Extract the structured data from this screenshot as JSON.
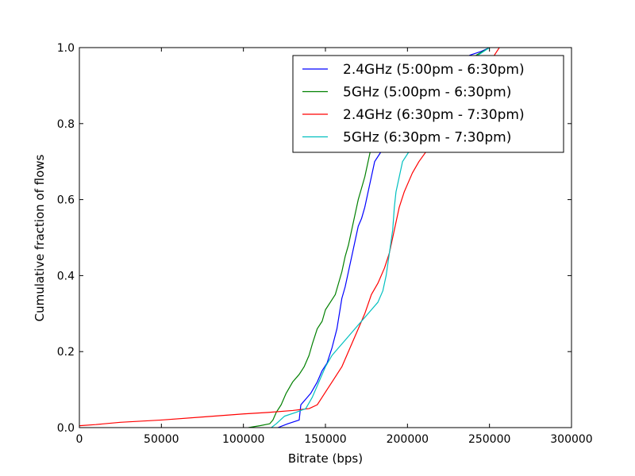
{
  "chart_data": {
    "type": "line",
    "title": "",
    "xlabel": "Bitrate (bps)",
    "ylabel": "Cumulative fraction of flows",
    "xlim": [
      0,
      300000
    ],
    "ylim": [
      0,
      1.0
    ],
    "xticks": [
      0,
      50000,
      100000,
      150000,
      200000,
      250000,
      300000
    ],
    "xtick_labels": [
      "0",
      "50000",
      "100000",
      "150000",
      "200000",
      "250000",
      "300000"
    ],
    "yticks": [
      0,
      0.2,
      0.4,
      0.6,
      0.8,
      1.0
    ],
    "ytick_labels": [
      "0.0",
      "0.2",
      "0.4",
      "0.6",
      "0.8",
      "1.0"
    ],
    "grid": false,
    "legend_position": "top-right",
    "series": [
      {
        "name": "2.4GHz (5:00pm - 6:30pm)",
        "color": "#0000ff",
        "x": [
          121000,
          127000,
          134000,
          135000,
          137000,
          141000,
          145000,
          148000,
          151000,
          154000,
          157000,
          160000,
          162000,
          164000,
          166000,
          168000,
          170000,
          172000,
          174000,
          176000,
          178000,
          180000,
          183000,
          186000,
          190000,
          195000,
          200000,
          210000,
          220000,
          230000,
          238000,
          245000,
          250000
        ],
        "y": [
          0.0,
          0.01,
          0.02,
          0.06,
          0.07,
          0.09,
          0.12,
          0.15,
          0.17,
          0.21,
          0.26,
          0.34,
          0.37,
          0.41,
          0.45,
          0.49,
          0.53,
          0.55,
          0.58,
          0.62,
          0.66,
          0.7,
          0.72,
          0.74,
          0.76,
          0.8,
          0.84,
          0.88,
          0.92,
          0.95,
          0.98,
          0.99,
          1.0
        ]
      },
      {
        "name": "5GHz (5:00pm - 6:30pm)",
        "color": "#008000",
        "x": [
          103000,
          110000,
          116000,
          118000,
          120000,
          123000,
          126000,
          130000,
          134000,
          137000,
          140000,
          142000,
          145000,
          148000,
          150000,
          153000,
          156000,
          158000,
          160000,
          162000,
          164000,
          166000,
          168000,
          170000,
          172000,
          174000,
          176000,
          178000,
          182000,
          188000,
          200000,
          215000,
          230000,
          242000,
          250000
        ],
        "y": [
          0.0,
          0.005,
          0.01,
          0.02,
          0.04,
          0.06,
          0.09,
          0.12,
          0.14,
          0.16,
          0.19,
          0.22,
          0.26,
          0.28,
          0.31,
          0.33,
          0.35,
          0.38,
          0.41,
          0.45,
          0.48,
          0.52,
          0.56,
          0.6,
          0.63,
          0.66,
          0.7,
          0.74,
          0.78,
          0.82,
          0.86,
          0.9,
          0.94,
          0.98,
          1.0
        ]
      },
      {
        "name": "2.4GHz (6:30pm - 7:30pm)",
        "color": "#ff0000",
        "x": [
          0,
          10000,
          25000,
          50000,
          75000,
          100000,
          115000,
          130000,
          140000,
          145000,
          148000,
          151000,
          154000,
          157000,
          160000,
          163000,
          166000,
          170000,
          174000,
          178000,
          182000,
          186000,
          189000,
          192000,
          195000,
          198000,
          200000,
          203000,
          207000,
          212000,
          220000,
          230000,
          240000,
          248000,
          253000,
          256000
        ],
        "y": [
          0.005,
          0.008,
          0.014,
          0.02,
          0.028,
          0.036,
          0.04,
          0.045,
          0.05,
          0.06,
          0.08,
          0.1,
          0.12,
          0.14,
          0.16,
          0.19,
          0.22,
          0.26,
          0.3,
          0.35,
          0.38,
          0.42,
          0.46,
          0.52,
          0.58,
          0.62,
          0.64,
          0.67,
          0.7,
          0.73,
          0.78,
          0.84,
          0.9,
          0.95,
          0.98,
          1.0
        ]
      },
      {
        "name": "5GHz (6:30pm - 7:30pm)",
        "color": "#00bfbf",
        "x": [
          117000,
          120000,
          125000,
          132000,
          138000,
          142000,
          146000,
          150000,
          154000,
          158000,
          162000,
          166000,
          170000,
          174000,
          178000,
          182000,
          185000,
          187000,
          189000,
          191000,
          192000,
          193000,
          195000,
          197000,
          200000,
          206000,
          215000,
          225000,
          235000,
          243000,
          250000
        ],
        "y": [
          0.0,
          0.01,
          0.03,
          0.04,
          0.05,
          0.08,
          0.12,
          0.16,
          0.19,
          0.21,
          0.23,
          0.25,
          0.27,
          0.29,
          0.31,
          0.33,
          0.36,
          0.4,
          0.46,
          0.52,
          0.58,
          0.62,
          0.66,
          0.7,
          0.72,
          0.76,
          0.82,
          0.88,
          0.94,
          0.98,
          1.0
        ]
      }
    ]
  }
}
